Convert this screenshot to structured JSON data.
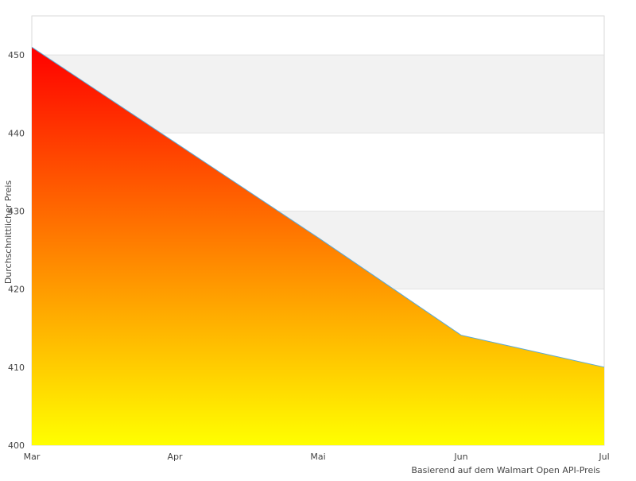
{
  "chart_data": {
    "type": "area",
    "x": [
      "Mar",
      "Apr",
      "Mai",
      "Jun",
      "Jul"
    ],
    "series": [
      {
        "values": [
          451,
          438.8,
          426.6,
          414.1,
          410
        ]
      }
    ],
    "ylabel": "Durchschnittlicher Preis",
    "note": "Basierend auf dem Walmart Open API-Preis",
    "ylim": [
      400,
      455
    ],
    "yticks": [
      400,
      410,
      420,
      430,
      440,
      450
    ],
    "grid": true,
    "alternating_bands": true,
    "colors": {
      "fill_top": "#ff0000",
      "fill_bottom": "#ffff00",
      "line": "#5aa9d6",
      "band": "#f2f2f2",
      "grid": "#e3e3e3",
      "frame": "#d9d9d9"
    }
  }
}
